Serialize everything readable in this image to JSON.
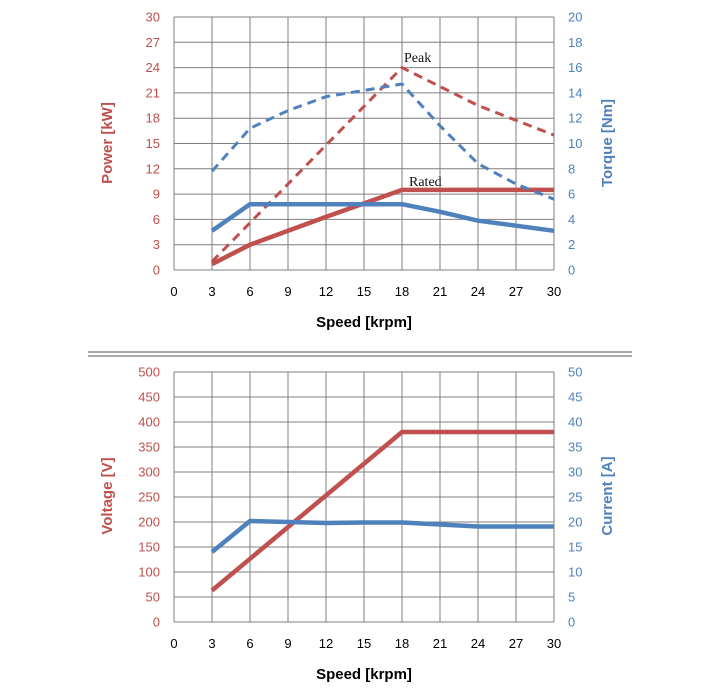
{
  "colors": {
    "red": "#c0504d",
    "blue": "#4f81bd",
    "grid": "#7f7f7f",
    "divider": "#8c8c8c"
  },
  "chart_data": [
    {
      "type": "line",
      "xlabel": "Speed [krpm]",
      "ylabel_left": "Power [kW]",
      "ylabel_right": "Torque [Nm]",
      "xlim": [
        0,
        30
      ],
      "x_ticks": [
        0,
        3,
        6,
        9,
        12,
        15,
        18,
        21,
        24,
        27,
        30
      ],
      "ylim_left": [
        0,
        30
      ],
      "y_ticks_left": [
        0,
        3,
        6,
        9,
        12,
        15,
        18,
        21,
        24,
        27,
        30
      ],
      "ylim_right": [
        0,
        20
      ],
      "y_ticks_right": [
        0,
        2,
        4,
        6,
        8,
        10,
        12,
        14,
        16,
        18,
        20
      ],
      "grid": true,
      "annotations": [
        "Peak",
        "Rated"
      ],
      "series": [
        {
          "axis": "left",
          "color": "red",
          "style": "dashed",
          "x": [
            3,
            18,
            24,
            30
          ],
          "y": [
            1.0,
            24.0,
            19.5,
            16.0
          ]
        },
        {
          "axis": "left",
          "color": "red",
          "style": "solid",
          "x": [
            3,
            6,
            12,
            18,
            21,
            24,
            27,
            30
          ],
          "y": [
            0.7,
            3.0,
            6.3,
            9.5,
            9.5,
            9.5,
            9.5,
            9.5
          ]
        },
        {
          "axis": "right",
          "color": "blue",
          "style": "dashed",
          "x": [
            3,
            6,
            9,
            12,
            15,
            18,
            21,
            24,
            27,
            30
          ],
          "y": [
            7.8,
            11.2,
            12.6,
            13.7,
            14.2,
            14.7,
            11.4,
            8.4,
            6.8,
            5.6
          ]
        },
        {
          "axis": "right",
          "color": "blue",
          "style": "solid",
          "x": [
            3,
            6,
            9,
            12,
            15,
            18,
            21,
            24,
            27,
            30
          ],
          "y": [
            3.1,
            5.2,
            5.2,
            5.2,
            5.2,
            5.2,
            4.6,
            3.9,
            3.5,
            3.1
          ]
        }
      ]
    },
    {
      "type": "line",
      "xlabel": "Speed [krpm]",
      "ylabel_left": "Voltage [V]",
      "ylabel_right": "Current [A]",
      "xlim": [
        0,
        30
      ],
      "x_ticks": [
        0,
        3,
        6,
        9,
        12,
        15,
        18,
        21,
        24,
        27,
        30
      ],
      "ylim_left": [
        0,
        500
      ],
      "y_ticks_left": [
        0,
        50,
        100,
        150,
        200,
        250,
        300,
        350,
        400,
        450,
        500
      ],
      "ylim_right": [
        0,
        50
      ],
      "y_ticks_right": [
        0,
        5,
        10,
        15,
        20,
        25,
        30,
        35,
        40,
        45,
        50
      ],
      "grid": true,
      "annotations": [],
      "series": [
        {
          "axis": "left",
          "color": "red",
          "style": "solid",
          "x": [
            3,
            18,
            21,
            24,
            27,
            30
          ],
          "y": [
            63,
            380,
            380,
            380,
            380,
            380
          ]
        },
        {
          "axis": "right",
          "color": "blue",
          "style": "solid",
          "x": [
            3,
            6,
            9,
            12,
            15,
            18,
            21,
            24,
            27,
            30
          ],
          "y": [
            14,
            20.2,
            20.0,
            19.8,
            19.9,
            19.9,
            19.5,
            19.1,
            19.1,
            19.1
          ]
        }
      ]
    }
  ]
}
